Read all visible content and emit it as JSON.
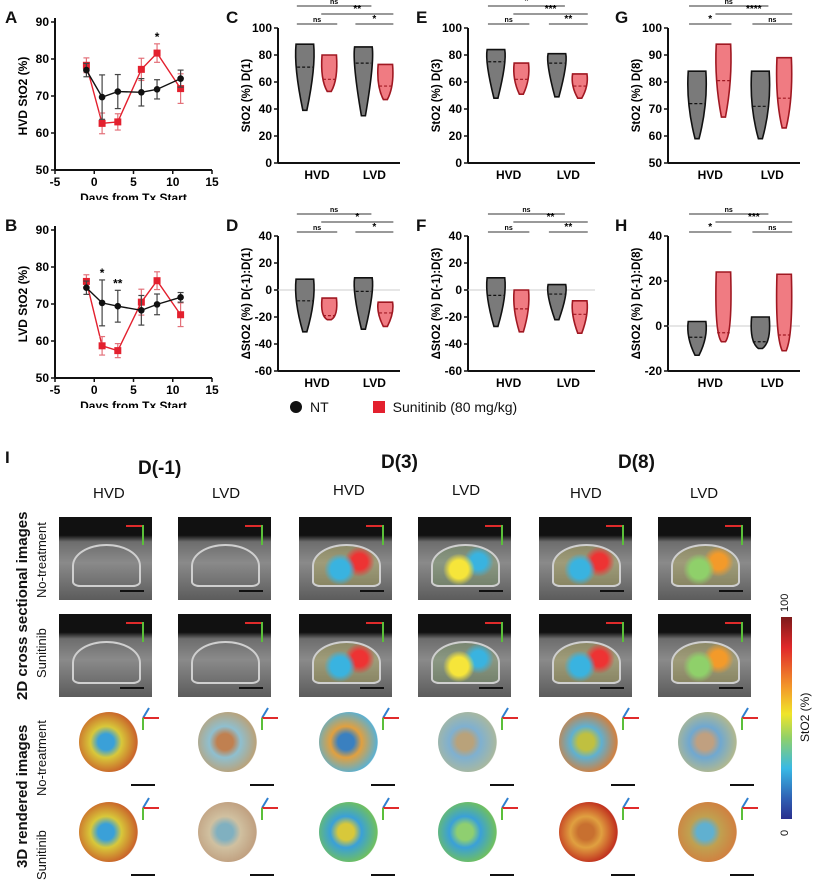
{
  "panels": {
    "A": "A",
    "B": "B",
    "C": "C",
    "D": "D",
    "E": "E",
    "F": "F",
    "G": "G",
    "H": "H",
    "I": "I"
  },
  "chart_data": [
    {
      "id": "A",
      "type": "line",
      "xlabel": "Days from Tx Start",
      "ylabel": "HVD StO2 (%)",
      "xlim": [
        -5,
        15
      ],
      "ylim": [
        50,
        90
      ],
      "xticks": [
        "-5",
        "0",
        "5",
        "10",
        "15"
      ],
      "yticks": [
        "50",
        "60",
        "70",
        "80",
        "90"
      ],
      "x": [
        -1,
        1,
        3,
        6,
        8,
        11
      ],
      "series": [
        {
          "name": "NT",
          "color": "#111111",
          "marker": "circle",
          "values": [
            77,
            69.7,
            71.2,
            71,
            71.8,
            74.7
          ],
          "err": [
            1.8,
            6,
            4.6,
            3.7,
            2.6,
            2.3
          ]
        },
        {
          "name": "Sunitinib (80 mg/kg)",
          "color": "#e3202e",
          "marker": "square",
          "values": [
            78.3,
            62.6,
            63,
            77.2,
            81.6,
            72
          ],
          "err": [
            2,
            2.8,
            2.2,
            3,
            2.5,
            4
          ]
        }
      ],
      "annotations": [
        {
          "x": 8,
          "text": "*"
        }
      ]
    },
    {
      "id": "B",
      "type": "line",
      "xlabel": "Days from Tx Start",
      "ylabel": "LVD StO2 (%)",
      "xlim": [
        -5,
        15
      ],
      "ylim": [
        50,
        90
      ],
      "xticks": [
        "-5",
        "0",
        "5",
        "10",
        "15"
      ],
      "yticks": [
        "50",
        "60",
        "70",
        "80",
        "90"
      ],
      "x": [
        -1,
        1,
        3,
        6,
        8,
        11
      ],
      "series": [
        {
          "name": "NT",
          "color": "#111111",
          "marker": "circle",
          "values": [
            74.4,
            70.3,
            69.4,
            68.3,
            69.9,
            71.8
          ],
          "err": [
            1.8,
            6.2,
            4.3,
            4,
            2.8,
            1.3
          ]
        },
        {
          "name": "Sunitinib (80 mg/kg)",
          "color": "#e3202e",
          "marker": "square",
          "values": [
            76.1,
            58.7,
            57.4,
            70.5,
            76.3,
            67.1
          ],
          "err": [
            1.8,
            2.5,
            1.9,
            3.5,
            2.4,
            3.2
          ]
        }
      ],
      "annotations": [
        {
          "x": 1,
          "text": "*"
        },
        {
          "x": 3,
          "text": "**"
        }
      ]
    },
    {
      "id": "C",
      "type": "violin",
      "ylabel": "StO2 (%) D(1)",
      "ylim": [
        0,
        100
      ],
      "yticks": [
        "0",
        "20",
        "40",
        "60",
        "80",
        "100"
      ],
      "categories": [
        "HVD",
        "LVD"
      ],
      "groups": [
        {
          "cat": "HVD",
          "name": "NT",
          "min": 39,
          "max": 88,
          "median": 71
        },
        {
          "cat": "HVD",
          "name": "Sunitinib",
          "min": 53,
          "max": 80,
          "median": 62
        },
        {
          "cat": "LVD",
          "name": "NT",
          "min": 35,
          "max": 86,
          "median": 74
        },
        {
          "cat": "LVD",
          "name": "Sunitinib",
          "min": 47,
          "max": 73,
          "median": 57
        }
      ],
      "brackets": [
        {
          "label": "ns",
          "from": 0,
          "to": 2,
          "level": 3
        },
        {
          "label": "**",
          "from": 1,
          "to": 3,
          "level": 2
        },
        {
          "label": "ns",
          "from": 0,
          "to": 1,
          "level": 1
        },
        {
          "label": "*",
          "from": 2,
          "to": 3,
          "level": 1
        }
      ]
    },
    {
      "id": "E",
      "type": "violin",
      "ylabel": "StO2 (%) D(3)",
      "ylim": [
        0,
        100
      ],
      "yticks": [
        "0",
        "20",
        "40",
        "60",
        "80",
        "100"
      ],
      "categories": [
        "HVD",
        "LVD"
      ],
      "groups": [
        {
          "cat": "HVD",
          "name": "NT",
          "min": 48,
          "max": 84,
          "median": 75
        },
        {
          "cat": "HVD",
          "name": "Sunitinib",
          "min": 51,
          "max": 74,
          "median": 62
        },
        {
          "cat": "LVD",
          "name": "NT",
          "min": 49,
          "max": 81,
          "median": 74
        },
        {
          "cat": "LVD",
          "name": "Sunitinib",
          "min": 48,
          "max": 66,
          "median": 57
        }
      ],
      "brackets": [
        {
          "label": "*",
          "from": 0,
          "to": 2,
          "level": 3
        },
        {
          "label": "***",
          "from": 1,
          "to": 3,
          "level": 2
        },
        {
          "label": "ns",
          "from": 0,
          "to": 1,
          "level": 1
        },
        {
          "label": "**",
          "from": 2,
          "to": 3,
          "level": 1
        }
      ]
    },
    {
      "id": "G",
      "type": "violin",
      "ylabel": "StO2 (%) D(8)",
      "ylim": [
        50,
        100
      ],
      "yticks": [
        "50",
        "60",
        "70",
        "80",
        "90",
        "100"
      ],
      "categories": [
        "HVD",
        "LVD"
      ],
      "groups": [
        {
          "cat": "HVD",
          "name": "NT",
          "min": 59,
          "max": 84,
          "median": 72
        },
        {
          "cat": "HVD",
          "name": "Sunitinib",
          "min": 67,
          "max": 94,
          "median": 80.5
        },
        {
          "cat": "LVD",
          "name": "NT",
          "min": 59,
          "max": 84,
          "median": 71
        },
        {
          "cat": "LVD",
          "name": "Sunitinib",
          "min": 63,
          "max": 89,
          "median": 74
        }
      ],
      "brackets": [
        {
          "label": "ns",
          "from": 0,
          "to": 2,
          "level": 3
        },
        {
          "label": "****",
          "from": 1,
          "to": 3,
          "level": 2
        },
        {
          "label": "*",
          "from": 0,
          "to": 1,
          "level": 1
        },
        {
          "label": "ns",
          "from": 2,
          "to": 3,
          "level": 1
        }
      ]
    },
    {
      "id": "D",
      "type": "violin",
      "ylabel": "ΔStO2 (%) D(-1):D(1)",
      "ylim": [
        -60,
        40
      ],
      "yticks": [
        "-60",
        "-40",
        "-20",
        "0",
        "20",
        "40"
      ],
      "categories": [
        "HVD",
        "LVD"
      ],
      "groups": [
        {
          "cat": "HVD",
          "name": "NT",
          "min": -31,
          "max": 8,
          "median": -8
        },
        {
          "cat": "HVD",
          "name": "Sunitinib",
          "min": -22,
          "max": -6,
          "median": -19
        },
        {
          "cat": "LVD",
          "name": "NT",
          "min": -29,
          "max": 9,
          "median": -1
        },
        {
          "cat": "LVD",
          "name": "Sunitinib",
          "min": -27,
          "max": -9,
          "median": -17
        }
      ],
      "brackets": [
        {
          "label": "ns",
          "from": 0,
          "to": 2,
          "level": 3
        },
        {
          "label": "*",
          "from": 1,
          "to": 3,
          "level": 2
        },
        {
          "label": "ns",
          "from": 0,
          "to": 1,
          "level": 1
        },
        {
          "label": "*",
          "from": 2,
          "to": 3,
          "level": 1
        }
      ]
    },
    {
      "id": "F",
      "type": "violin",
      "ylabel": "ΔStO2 (%) D(-1):D(3)",
      "ylim": [
        -60,
        40
      ],
      "yticks": [
        "-60",
        "-40",
        "-20",
        "0",
        "20",
        "40"
      ],
      "categories": [
        "HVD",
        "LVD"
      ],
      "groups": [
        {
          "cat": "HVD",
          "name": "NT",
          "min": -27,
          "max": 9,
          "median": -4
        },
        {
          "cat": "HVD",
          "name": "Sunitinib",
          "min": -31,
          "max": 0,
          "median": -14
        },
        {
          "cat": "LVD",
          "name": "NT",
          "min": -22,
          "max": 4,
          "median": -3
        },
        {
          "cat": "LVD",
          "name": "Sunitinib",
          "min": -32,
          "max": -8,
          "median": -18
        }
      ],
      "brackets": [
        {
          "label": "ns",
          "from": 0,
          "to": 2,
          "level": 3
        },
        {
          "label": "**",
          "from": 1,
          "to": 3,
          "level": 2
        },
        {
          "label": "ns",
          "from": 0,
          "to": 1,
          "level": 1
        },
        {
          "label": "**",
          "from": 2,
          "to": 3,
          "level": 1
        }
      ]
    },
    {
      "id": "H",
      "type": "violin",
      "ylabel": "ΔStO2 (%) D(-1):D(8)",
      "ylim": [
        -20,
        40
      ],
      "yticks": [
        "-20",
        "0",
        "20",
        "40"
      ],
      "categories": [
        "HVD",
        "LVD"
      ],
      "groups": [
        {
          "cat": "HVD",
          "name": "NT",
          "min": -13,
          "max": 2,
          "median": -5
        },
        {
          "cat": "HVD",
          "name": "Sunitinib",
          "min": -7,
          "max": 24,
          "median": -3
        },
        {
          "cat": "LVD",
          "name": "NT",
          "min": -10,
          "max": 4,
          "median": -7
        },
        {
          "cat": "LVD",
          "name": "Sunitinib",
          "min": -11,
          "max": 23,
          "median": -4
        }
      ],
      "brackets": [
        {
          "label": "ns",
          "from": 0,
          "to": 2,
          "level": 3
        },
        {
          "label": "***",
          "from": 1,
          "to": 3,
          "level": 2
        },
        {
          "label": "*",
          "from": 0,
          "to": 1,
          "level": 1
        },
        {
          "label": "ns",
          "from": 2,
          "to": 3,
          "level": 1
        }
      ]
    }
  ],
  "legend": {
    "nt": "NT",
    "sun": "Sunitinib (80 mg/kg)",
    "nt_color": "#111111",
    "sun_color": "#e3202e"
  },
  "images": {
    "days": [
      "D(-1)",
      "D(3)",
      "D(8)"
    ],
    "groups": [
      "HVD",
      "LVD",
      "HVD",
      "LVD",
      "HVD",
      "LVD"
    ],
    "section_2d": "2D cross sectional images",
    "section_3d": "3D rendered images",
    "row_no_treatment": "No-treatment",
    "row_sunitinib": "Sunitinib",
    "colorbar": {
      "label": "StO2 (%)",
      "max": "100",
      "min": "0"
    }
  }
}
